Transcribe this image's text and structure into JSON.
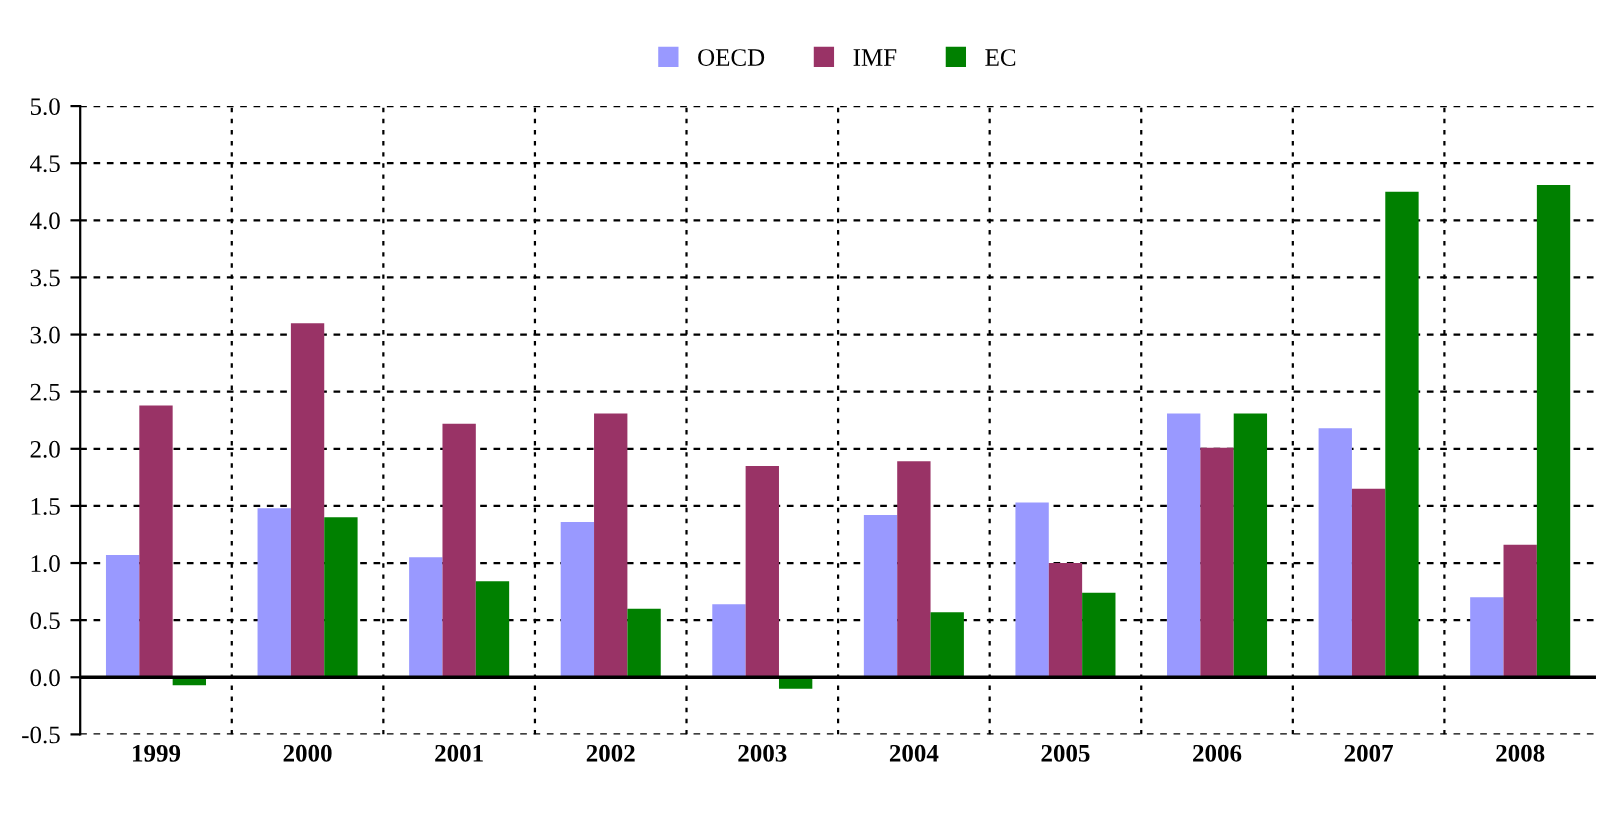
{
  "chart_data": {
    "type": "bar",
    "categories": [
      "1999",
      "2000",
      "2001",
      "2002",
      "2003",
      "2004",
      "2005",
      "2006",
      "2007",
      "2008"
    ],
    "series": [
      {
        "name": "OECD",
        "color": "#9999ff",
        "values": [
          1.07,
          1.48,
          1.05,
          1.36,
          0.64,
          1.42,
          1.53,
          2.31,
          2.18,
          0.7
        ]
      },
      {
        "name": "IMF",
        "color": "#993366",
        "values": [
          2.38,
          3.1,
          2.22,
          2.31,
          1.85,
          1.89,
          1.0,
          2.01,
          1.65,
          1.16
        ]
      },
      {
        "name": "EC",
        "color": "#008000",
        "values": [
          -0.07,
          1.4,
          0.84,
          0.6,
          -0.1,
          0.57,
          0.74,
          2.31,
          4.25,
          4.31
        ]
      }
    ],
    "ylim": [
      -0.5,
      5.0
    ],
    "yticks": [
      {
        "value": -0.5,
        "label": "-0.5"
      },
      {
        "value": 0,
        "label": "0.0"
      },
      {
        "value": 0.5,
        "label": "0.5"
      },
      {
        "value": 1,
        "label": "1.0"
      },
      {
        "value": 1.5,
        "label": "1.5"
      },
      {
        "value": 2,
        "label": "2.0"
      },
      {
        "value": 2.5,
        "label": "2.5"
      },
      {
        "value": 3,
        "label": "3.0"
      },
      {
        "value": 3.5,
        "label": "3.5"
      },
      {
        "value": 4,
        "label": "4.0"
      },
      {
        "value": 4.5,
        "label": "4.5"
      },
      {
        "value": 5,
        "label": "5.0"
      }
    ],
    "grid": true,
    "legend": "top"
  }
}
